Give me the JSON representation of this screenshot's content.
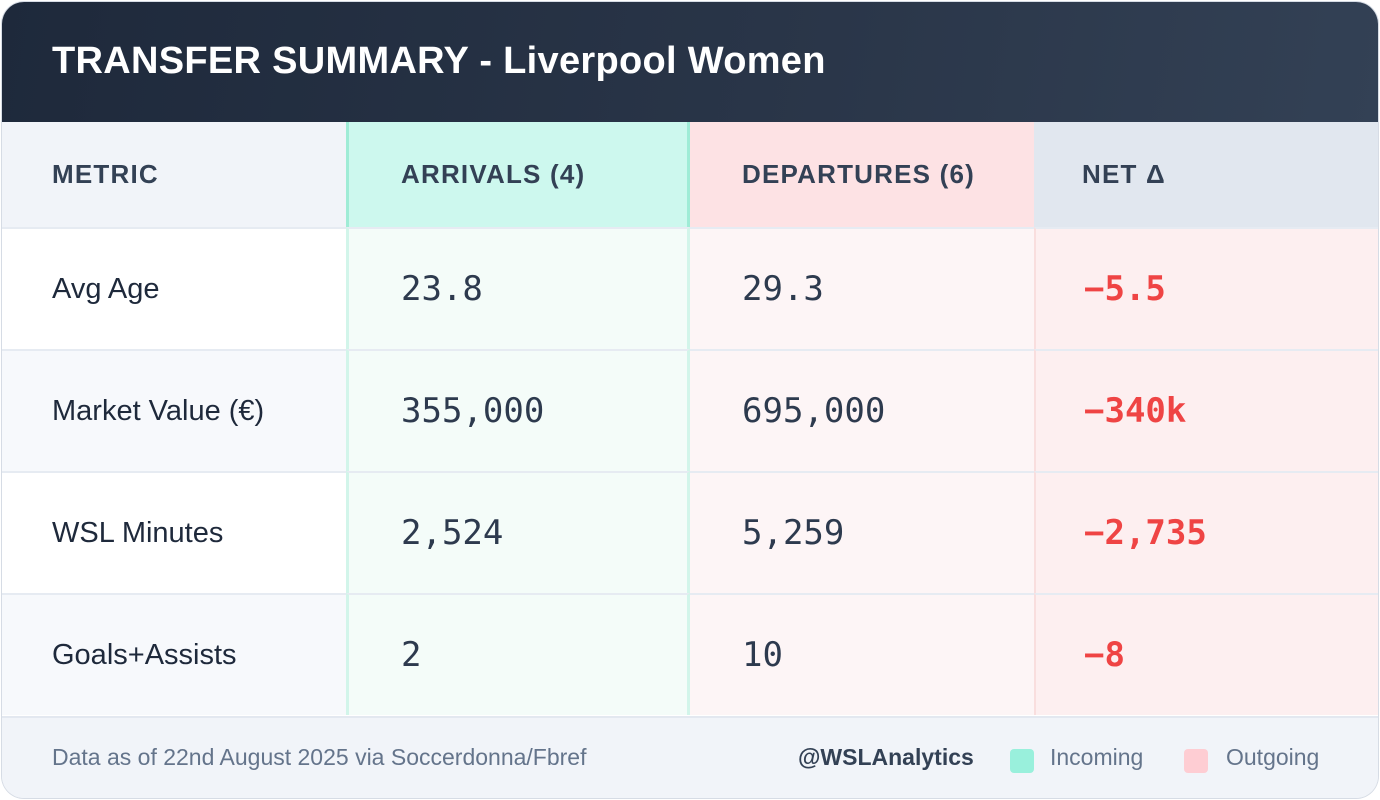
{
  "title": "TRANSFER SUMMARY - Liverpool Women",
  "headers": [
    "METRIC",
    "ARRIVALS (4)",
    "DEPARTURES (6)",
    "NET Δ"
  ],
  "rows": [
    {
      "metric": "Avg Age",
      "arrivals": "23.8",
      "departures": "29.3",
      "net": "−5.5"
    },
    {
      "metric": "Market Value (€)",
      "arrivals": "355,000",
      "departures": "695,000",
      "net": "−340k"
    },
    {
      "metric": "WSL Minutes",
      "arrivals": "2,524",
      "departures": "5,259",
      "net": "−2,735"
    },
    {
      "metric": "Goals+Assists",
      "arrivals": "2",
      "departures": "10",
      "net": "−8"
    }
  ],
  "footer": {
    "source": "Data as of 22nd August 2025 via Soccerdonna/Fbref",
    "handle": "@WSLAnalytics",
    "legend": [
      {
        "label": "Incoming",
        "color": "#99f0dc"
      },
      {
        "label": "Outgoing",
        "color": "#fecdd3"
      }
    ]
  },
  "colors": {
    "header_bg": "#1e293b",
    "arrivals_accent": "#cdf8ee",
    "departures_accent": "#fde2e4",
    "negative": "#ef4444"
  }
}
